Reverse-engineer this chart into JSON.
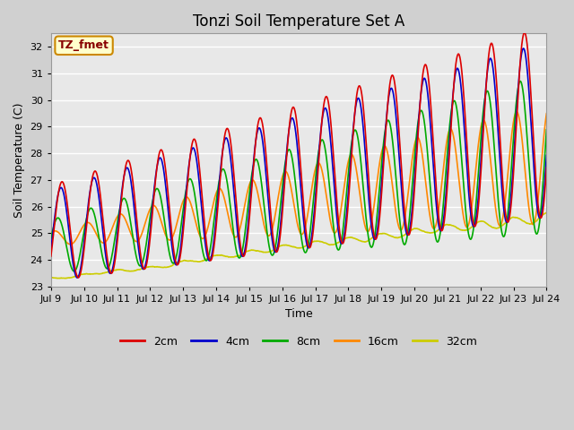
{
  "title": "Tonzi Soil Temperature Set A",
  "xlabel": "Time",
  "ylabel": "Soil Temperature (C)",
  "ylim": [
    23.0,
    32.5
  ],
  "xlim": [
    0,
    360
  ],
  "yticks": [
    23.0,
    24.0,
    25.0,
    26.0,
    27.0,
    28.0,
    29.0,
    30.0,
    31.0,
    32.0
  ],
  "xtick_labels": [
    "Jul 9",
    "Jul 10",
    "Jul 11",
    "Jul 12",
    "Jul 13",
    "Jul 14",
    "Jul 15",
    "Jul 16",
    "Jul 17",
    "Jul 18",
    "Jul 19",
    "Jul 20",
    "Jul 21",
    "Jul 22",
    "Jul 23",
    "Jul 24"
  ],
  "xtick_positions": [
    0,
    24,
    48,
    72,
    96,
    120,
    144,
    168,
    192,
    216,
    240,
    264,
    288,
    312,
    336,
    360
  ],
  "annotation_text": "TZ_fmet",
  "annotation_bg": "#ffffcc",
  "annotation_border": "#cc8800",
  "series_colors": [
    "#dd0000",
    "#0000cc",
    "#00aa00",
    "#ff8800",
    "#cccc00"
  ],
  "series_labels": [
    "2cm",
    "4cm",
    "8cm",
    "16cm",
    "32cm"
  ],
  "fig_facecolor": "#d0d0d0",
  "plot_bg": "#e8e8e8",
  "grid_color": "#ffffff",
  "title_fontsize": 12,
  "label_fontsize": 9,
  "tick_fontsize": 8,
  "legend_fontsize": 9
}
